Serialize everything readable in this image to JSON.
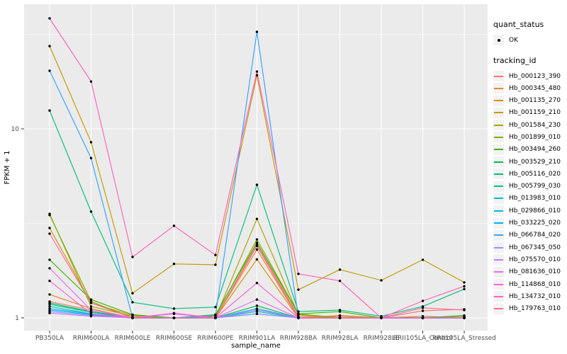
{
  "figure": {
    "background": "#FFFFFF",
    "panel_background": "#EBEBEB",
    "gridline_color": "#FFFFFF",
    "tick_color": "#333333",
    "tick_label_color": "#4D4D4D",
    "axis_title_color": "#000000",
    "point_color": "#000000",
    "legend_key_background": "#F2F2F2"
  },
  "legend": {
    "quant_title": "quant_status",
    "quant_items": [
      {
        "label": "OK",
        "marker": "point"
      }
    ],
    "tracking_title": "tracking_id"
  },
  "axes": {
    "x_title": "sample_name",
    "y_title": "FPKM + 1",
    "y_tick_labels": [
      "10",
      "1"
    ]
  },
  "chart_data": {
    "type": "line",
    "title": "",
    "xlabel": "sample_name",
    "ylabel": "FPKM + 1",
    "y_scale": "log10",
    "y_breaks": [
      1,
      10
    ],
    "y_minor_breaks": [
      3.162,
      31.62
    ],
    "ylim": [
      0.87,
      45
    ],
    "grid": true,
    "legend_position": "right",
    "point_marker": "black dot (quant_status OK)",
    "categories": [
      "PB350LA",
      "RRIM600LA",
      "RRIM600LE",
      "RRIM600SE",
      "RRIM600PE",
      "RRIM901LA",
      "RRIM928BA",
      "RRIM928LA",
      "RRIM928LE",
      "RRII105LA_Control",
      "RRII105LA_Stressed"
    ],
    "series": [
      {
        "name": "Hb_000123_390",
        "color": "#F8766D",
        "values": [
          1.22,
          1.1,
          1.0,
          1.0,
          1.0,
          2.45,
          1.02,
          1.0,
          1.0,
          1.09,
          1.11
        ]
      },
      {
        "name": "Hb_000345_480",
        "color": "#EA8331",
        "values": [
          1.33,
          1.12,
          1.0,
          1.0,
          1.0,
          2.3,
          1.0,
          1.02,
          1.0,
          1.0,
          1.02
        ]
      },
      {
        "name": "Hb_001135_270",
        "color": "#D89000",
        "values": [
          2.99,
          1.2,
          1.03,
          1.0,
          1.0,
          2.04,
          1.0,
          1.03,
          1.0,
          1.02,
          1.0
        ]
      },
      {
        "name": "Hb_001159_210",
        "color": "#C09B00",
        "values": [
          27.4,
          8.5,
          1.35,
          1.93,
          1.91,
          19.2,
          1.41,
          1.8,
          1.58,
          2.03,
          1.54
        ]
      },
      {
        "name": "Hb_001584_230",
        "color": "#A3A500",
        "values": [
          3.55,
          1.15,
          1.02,
          1.0,
          1.0,
          3.34,
          1.04,
          1.0,
          1.0,
          1.0,
          1.02
        ]
      },
      {
        "name": "Hb_001899_010",
        "color": "#7CAE00",
        "values": [
          3.5,
          1.22,
          1.0,
          1.0,
          1.02,
          2.6,
          1.05,
          1.0,
          1.0,
          1.0,
          1.0
        ]
      },
      {
        "name": "Hb_003494_260",
        "color": "#39B600",
        "values": [
          2.03,
          1.25,
          1.04,
          1.0,
          1.04,
          2.5,
          1.05,
          1.08,
          1.0,
          1.0,
          1.03
        ]
      },
      {
        "name": "Hb_003529_210",
        "color": "#00BB4E",
        "values": [
          1.2,
          1.08,
          1.0,
          1.0,
          1.0,
          1.16,
          1.0,
          1.0,
          1.0,
          1.0,
          1.0
        ]
      },
      {
        "name": "Hb_005116_020",
        "color": "#00C079",
        "values": [
          12.5,
          3.65,
          1.21,
          1.12,
          1.14,
          5.06,
          1.08,
          1.1,
          1.02,
          1.15,
          1.42
        ]
      },
      {
        "name": "Hb_005799_030",
        "color": "#00C19C",
        "values": [
          1.18,
          1.07,
          1.0,
          1.0,
          1.0,
          1.1,
          1.0,
          1.0,
          1.0,
          1.0,
          1.0
        ]
      },
      {
        "name": "Hb_013983_010",
        "color": "#00BFC4",
        "values": [
          1.15,
          1.05,
          1.0,
          1.0,
          1.0,
          1.08,
          1.0,
          1.0,
          1.0,
          1.0,
          1.0
        ]
      },
      {
        "name": "Hb_029866_010",
        "color": "#00BAE5",
        "values": [
          1.12,
          1.05,
          1.0,
          1.0,
          1.0,
          1.05,
          1.0,
          1.0,
          1.0,
          1.0,
          1.0
        ]
      },
      {
        "name": "Hb_033225_020",
        "color": "#00B0F6",
        "values": [
          1.1,
          1.04,
          1.0,
          1.0,
          1.0,
          1.12,
          1.0,
          1.0,
          1.0,
          1.0,
          1.0
        ]
      },
      {
        "name": "Hb_066784_020",
        "color": "#35A2FF",
        "values": [
          20.3,
          7.0,
          1.0,
          1.0,
          1.03,
          32.6,
          1.0,
          1.0,
          1.0,
          1.0,
          1.0
        ]
      },
      {
        "name": "Hb_067345_050",
        "color": "#9590FF",
        "values": [
          1.08,
          1.03,
          1.0,
          1.0,
          1.0,
          1.05,
          1.0,
          1.0,
          1.0,
          1.0,
          1.0
        ]
      },
      {
        "name": "Hb_075570_010",
        "color": "#C77CFF",
        "values": [
          1.06,
          1.02,
          1.0,
          1.0,
          1.0,
          1.1,
          1.0,
          1.0,
          1.0,
          1.0,
          1.0
        ]
      },
      {
        "name": "Hb_081636_010",
        "color": "#E76BF3",
        "values": [
          1.83,
          1.1,
          1.0,
          1.05,
          1.0,
          1.25,
          1.0,
          1.0,
          1.0,
          1.0,
          1.0
        ]
      },
      {
        "name": "Hb_114868_010",
        "color": "#FA62DB",
        "values": [
          1.57,
          1.05,
          1.0,
          1.06,
          1.0,
          1.53,
          1.0,
          1.0,
          1.0,
          1.0,
          1.0
        ]
      },
      {
        "name": "Hb_134732_010",
        "color": "#FF62BC",
        "values": [
          38.4,
          17.8,
          2.1,
          3.07,
          2.15,
          20.1,
          1.71,
          1.57,
          1.0,
          1.23,
          1.47
        ]
      },
      {
        "name": "Hb_179763_010",
        "color": "#FF6A98",
        "values": [
          2.79,
          1.2,
          1.0,
          1.0,
          1.0,
          2.4,
          1.0,
          1.0,
          1.0,
          1.13,
          1.1
        ]
      }
    ]
  }
}
